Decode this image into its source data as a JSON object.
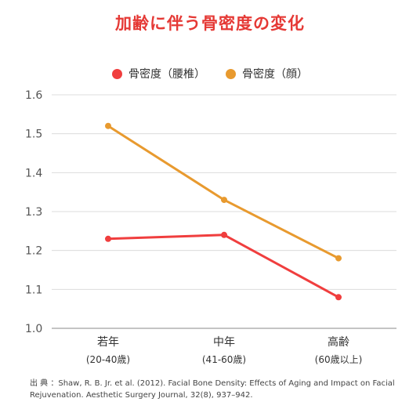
{
  "colors": {
    "title": "#e53935",
    "lumbar": "#f03e3e",
    "face": "#e89a2f",
    "grid": "#dcdcdc",
    "axis": "#555555"
  },
  "chart_data": {
    "type": "line",
    "title": "加齢に伴う骨密度の変化",
    "categories": [
      "若年",
      "中年",
      "高齢"
    ],
    "category_sublabels": [
      "(20-40歳)",
      "(41-60歳)",
      "(60歳以上)"
    ],
    "series": [
      {
        "name": "骨密度（腰椎）",
        "values": [
          1.23,
          1.24,
          1.08
        ]
      },
      {
        "name": "骨密度（顔）",
        "values": [
          1.52,
          1.33,
          1.18
        ]
      }
    ],
    "ylim": [
      1.0,
      1.6
    ],
    "yticks": [
      "1.0",
      "1.1",
      "1.2",
      "1.3",
      "1.4",
      "1.5",
      "1.6"
    ],
    "grid": true,
    "legend": "top-center"
  },
  "source": {
    "line1": "出 典 ：Shaw, R. B. Jr. et al. (2012). Facial Bone Density: Effects of Aging and Impact on Facial",
    "line2": "Rejuvenation. Aesthetic Surgery Journal, 32(8), 937–942."
  }
}
